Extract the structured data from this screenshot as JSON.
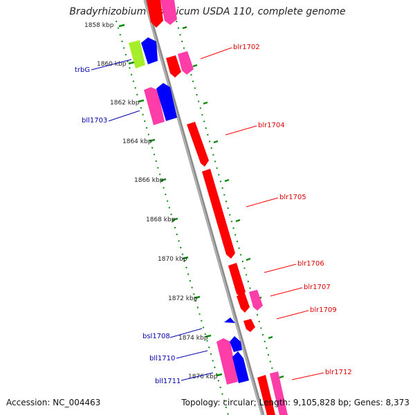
{
  "title": "Bradyrhizobium japonicum USDA 110, complete genome",
  "footer": {
    "accession": "Accession: NC_004463",
    "summary": "Topology: circular; Length: 9,105,828 bp; Genes: 8,373"
  },
  "colors": {
    "backbone": "#8c8c8c",
    "tick_green": "#0a8a0a",
    "gene_red": "#ff0000",
    "gene_pink": "#ff3da8",
    "gene_blue": "#0000ff",
    "gene_lime": "#a6ee2a",
    "label_red": "#e00000",
    "label_blue": "#0000b0"
  },
  "ticks": [
    "1858 kbp",
    "1860 kbp",
    "1862 kbp",
    "1864 kbp",
    "1866 kbp",
    "1868 kbp",
    "1870 kbp",
    "1872 kbp",
    "1874 kbp",
    "1876 kbp"
  ],
  "genes": [
    {
      "label": "blr1702",
      "strand": "forward"
    },
    {
      "label": "trbG",
      "strand": "reverse"
    },
    {
      "label": "bll1703",
      "strand": "reverse"
    },
    {
      "label": "blr1704",
      "strand": "forward"
    },
    {
      "label": "blr1705",
      "strand": "forward"
    },
    {
      "label": "blr1706",
      "strand": "forward"
    },
    {
      "label": "blr1707",
      "strand": "forward"
    },
    {
      "label": "blr1709",
      "strand": "forward"
    },
    {
      "label": "bsl1708",
      "strand": "reverse"
    },
    {
      "label": "bll1710",
      "strand": "reverse"
    },
    {
      "label": "bll1711",
      "strand": "reverse"
    },
    {
      "label": "blr1712",
      "strand": "forward"
    }
  ]
}
